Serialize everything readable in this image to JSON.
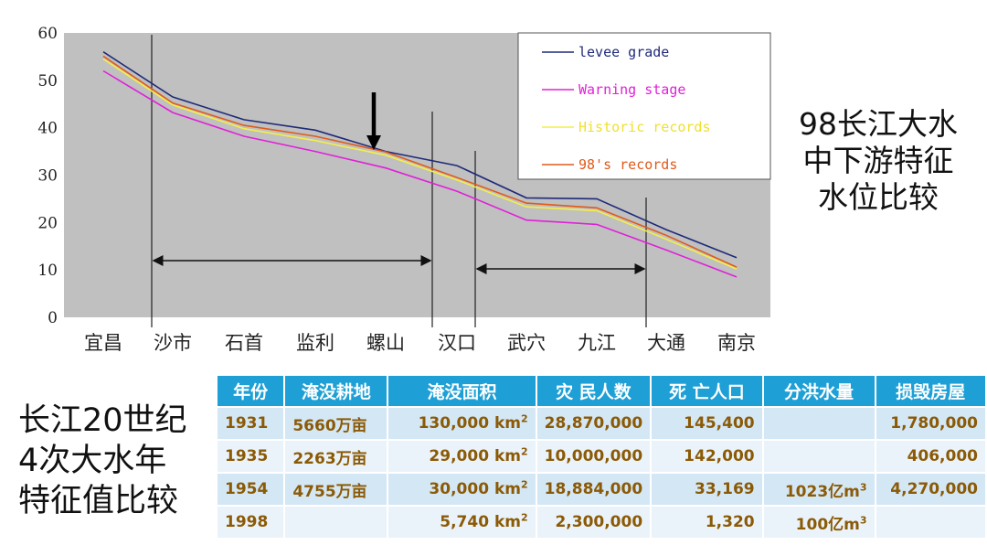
{
  "chart_data": {
    "type": "line",
    "title": "",
    "xlabel": "",
    "ylabel": "",
    "ylim": [
      0,
      60
    ],
    "yticks": [
      "0",
      "10",
      "20",
      "30",
      "40",
      "50",
      "60"
    ],
    "categories": [
      "宜昌",
      "沙市",
      "石首",
      "监利",
      "螺山",
      "汉口",
      "武穴",
      "九江",
      "大通",
      "南京"
    ],
    "grid": false,
    "legend_position": "top-right",
    "series": [
      {
        "name": "levee grade",
        "color": "#1f2a7a",
        "values": [
          56,
          46.5,
          41.7,
          39.5,
          35,
          32,
          25.2,
          25,
          18.5,
          12.6
        ]
      },
      {
        "name": "Warning stage",
        "color": "#e020d8",
        "values": [
          52,
          43.2,
          38.2,
          35,
          31.5,
          26.6,
          20.5,
          19.6,
          14.2,
          8.5
        ]
      },
      {
        "name": "Historic records",
        "color": "#f2ef4a",
        "values": [
          54.5,
          44.8,
          39.8,
          37.3,
          34.2,
          29,
          23.3,
          22.5,
          16.5,
          10.2
        ]
      },
      {
        "name": "98's records",
        "color": "#e05a1a",
        "values": [
          55.1,
          45.2,
          40.5,
          38.2,
          34.9,
          29.5,
          24.1,
          23.1,
          17.3,
          10.6
        ]
      }
    ]
  },
  "side_title": {
    "lines": [
      "98长江大水",
      "中下游特征",
      "水位比较"
    ]
  },
  "table_title": {
    "lines": [
      "长江20世纪",
      "4次大水年",
      "特征值比较"
    ]
  },
  "table": {
    "headers": [
      "年份",
      "淹没耕地",
      "淹没面积",
      "灾 民人数",
      "死 亡人口",
      "分洪水量",
      "损毁房屋"
    ],
    "rows": [
      {
        "year": "1931",
        "farmland": "5660万亩",
        "area": "130,000 km",
        "area_unit_sup": "2",
        "victims": "28,870,000",
        "deaths": "145,400",
        "diversion": "",
        "diversion_sup": "",
        "houses": "1,780,000"
      },
      {
        "year": "1935",
        "farmland": "2263万亩",
        "area": "29,000 km",
        "area_unit_sup": "2",
        "victims": "10,000,000",
        "deaths": "142,000",
        "diversion": "",
        "diversion_sup": "",
        "houses": "406,000"
      },
      {
        "year": "1954",
        "farmland": "4755万亩",
        "area": "30,000 km",
        "area_unit_sup": "2",
        "victims": "18,884,000",
        "deaths": "33,169",
        "diversion": "1023亿m",
        "diversion_sup": "3",
        "houses": "4,270,000"
      },
      {
        "year": "1998",
        "farmland": "",
        "area": "5,740 km",
        "area_unit_sup": "2",
        "victims": "2,300,000",
        "deaths": "1,320",
        "diversion": "100亿m",
        "diversion_sup": "3",
        "houses": ""
      }
    ]
  },
  "colors": {
    "plot_bg": "#c0c0c0",
    "header_bg": "#1ea0d6",
    "row_odd": "#d4e7f5",
    "row_even": "#ebf3fa",
    "cell_text": "#8b5a06"
  }
}
